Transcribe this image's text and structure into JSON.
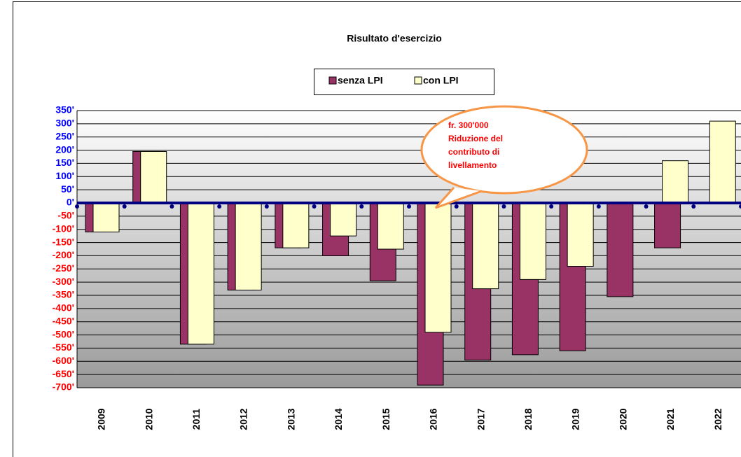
{
  "chart_data": {
    "type": "bar",
    "title": "Risultato d'esercizio",
    "categories": [
      "2009",
      "2010",
      "2011",
      "2012",
      "2013",
      "2014",
      "2015",
      "2016",
      "2017",
      "2018",
      "2019",
      "2020",
      "2021",
      "2022"
    ],
    "series": [
      {
        "name": "senza LPI",
        "color": "#993366",
        "values": [
          -110,
          195,
          -535,
          -330,
          -170,
          -200,
          -295,
          -690,
          -595,
          -575,
          -560,
          -355,
          -170,
          null
        ]
      },
      {
        "name": "con LPI",
        "color": "#ffffcc",
        "values": [
          -110,
          195,
          -535,
          -330,
          -170,
          -125,
          -175,
          -490,
          -325,
          -290,
          -240,
          null,
          160,
          310
        ]
      }
    ],
    "ylim": [
      -700,
      350
    ],
    "yticks": [
      {
        "value": 350,
        "label": "350'"
      },
      {
        "value": 300,
        "label": "300'"
      },
      {
        "value": 250,
        "label": "250'"
      },
      {
        "value": 200,
        "label": "200'"
      },
      {
        "value": 150,
        "label": "150'"
      },
      {
        "value": 100,
        "label": "100'"
      },
      {
        "value": 50,
        "label": "50'"
      },
      {
        "value": 0,
        "label": "0'"
      },
      {
        "value": -50,
        "label": "-50'"
      },
      {
        "value": -100,
        "label": "-100'"
      },
      {
        "value": -150,
        "label": "-150'"
      },
      {
        "value": -200,
        "label": "-200'"
      },
      {
        "value": -250,
        "label": "-250'"
      },
      {
        "value": -300,
        "label": "-300'"
      },
      {
        "value": -350,
        "label": "-350'"
      },
      {
        "value": -400,
        "label": "-400'"
      },
      {
        "value": -450,
        "label": "-450'"
      },
      {
        "value": -500,
        "label": "-500'"
      },
      {
        "value": -550,
        "label": "-550'"
      },
      {
        "value": -600,
        "label": "-600'"
      },
      {
        "value": -650,
        "label": "-650'"
      },
      {
        "value": -700,
        "label": "-700'"
      }
    ],
    "grid": true,
    "positive_tick_color": "#0000ff",
    "negative_tick_color": "#ff0000",
    "legend": "top",
    "annotation": [
      "fr. 300'000",
      "Riduzione del",
      "contributo di",
      "livellamento"
    ]
  }
}
